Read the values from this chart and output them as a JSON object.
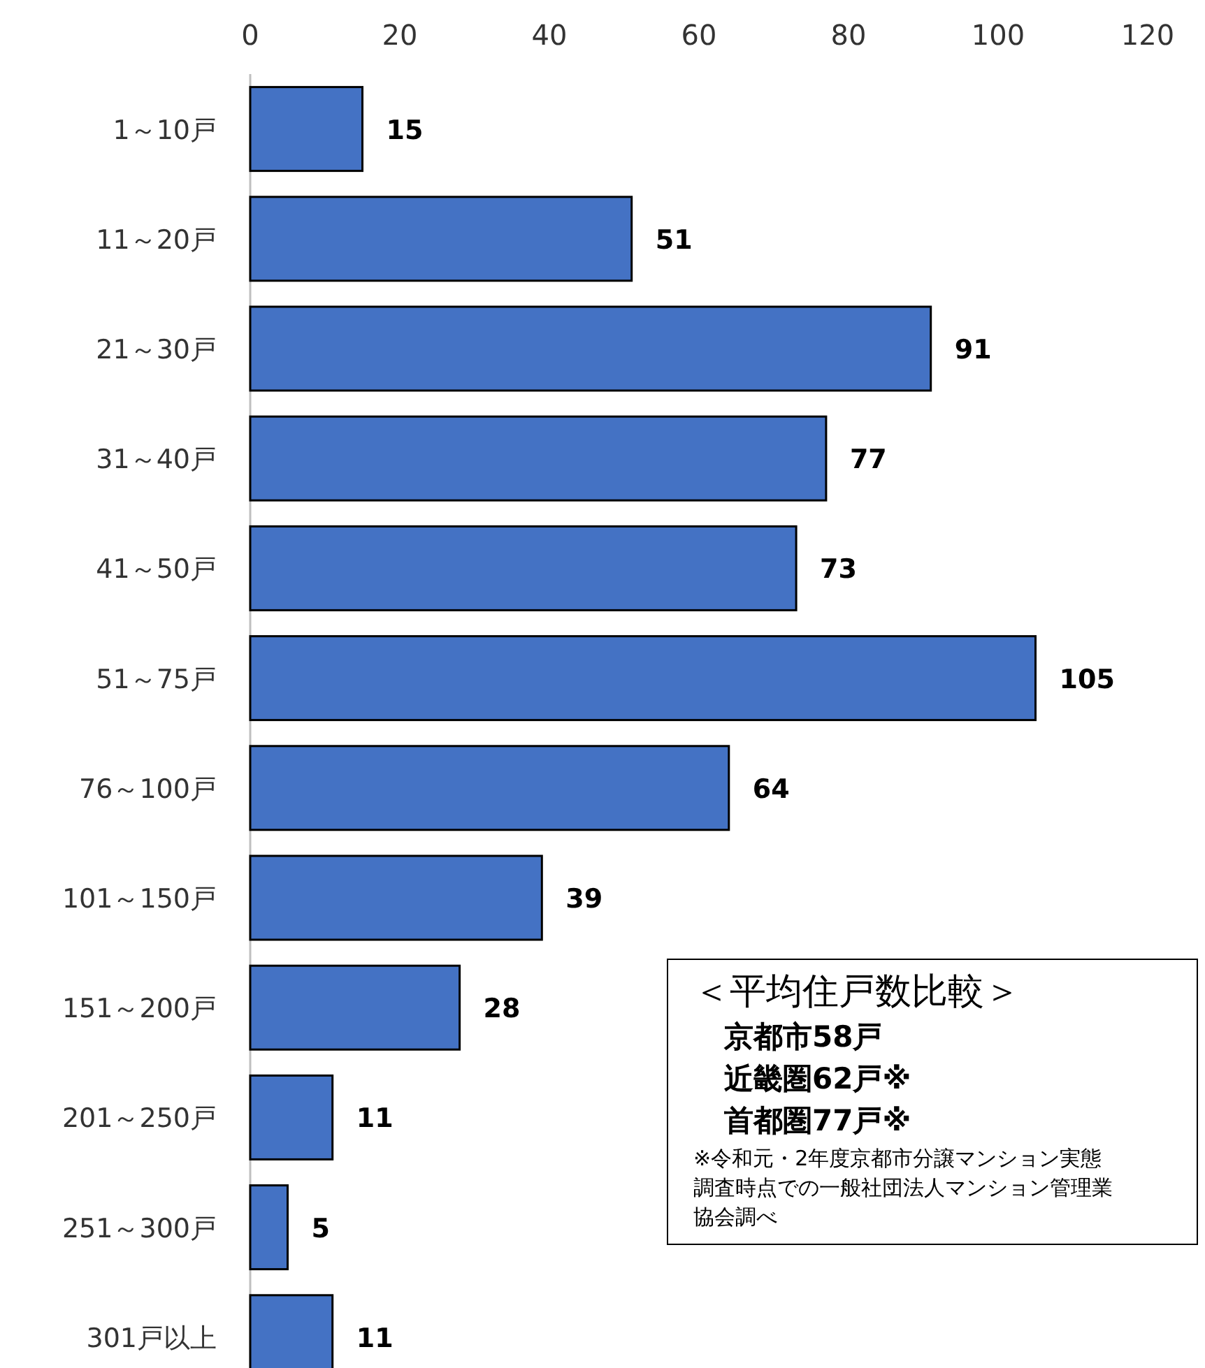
{
  "chart_data": {
    "type": "bar",
    "orientation": "horizontal",
    "categories": [
      "1～10戸",
      "11～20戸",
      "21～30戸",
      "31～40戸",
      "41～50戸",
      "51～75戸",
      "76～100戸",
      "101～150戸",
      "151～200戸",
      "201～250戸",
      "251～300戸",
      "301戸以上"
    ],
    "values": [
      15,
      51,
      91,
      77,
      73,
      105,
      64,
      39,
      28,
      11,
      5,
      11
    ],
    "color": "#4472c4",
    "xlim": [
      0,
      120
    ],
    "xticks": [
      0,
      20,
      40,
      60,
      80,
      100,
      120
    ],
    "data_labels": true,
    "grid": false,
    "annotations": [
      "＜平均住戸数比較＞",
      "京都市58戸",
      "近畿圏62戸※",
      "首都圏77戸※",
      "※令和元・2年度京都市分譲マンション実態調査時点での一般社団法人マンション管理業協会調べ"
    ]
  }
}
